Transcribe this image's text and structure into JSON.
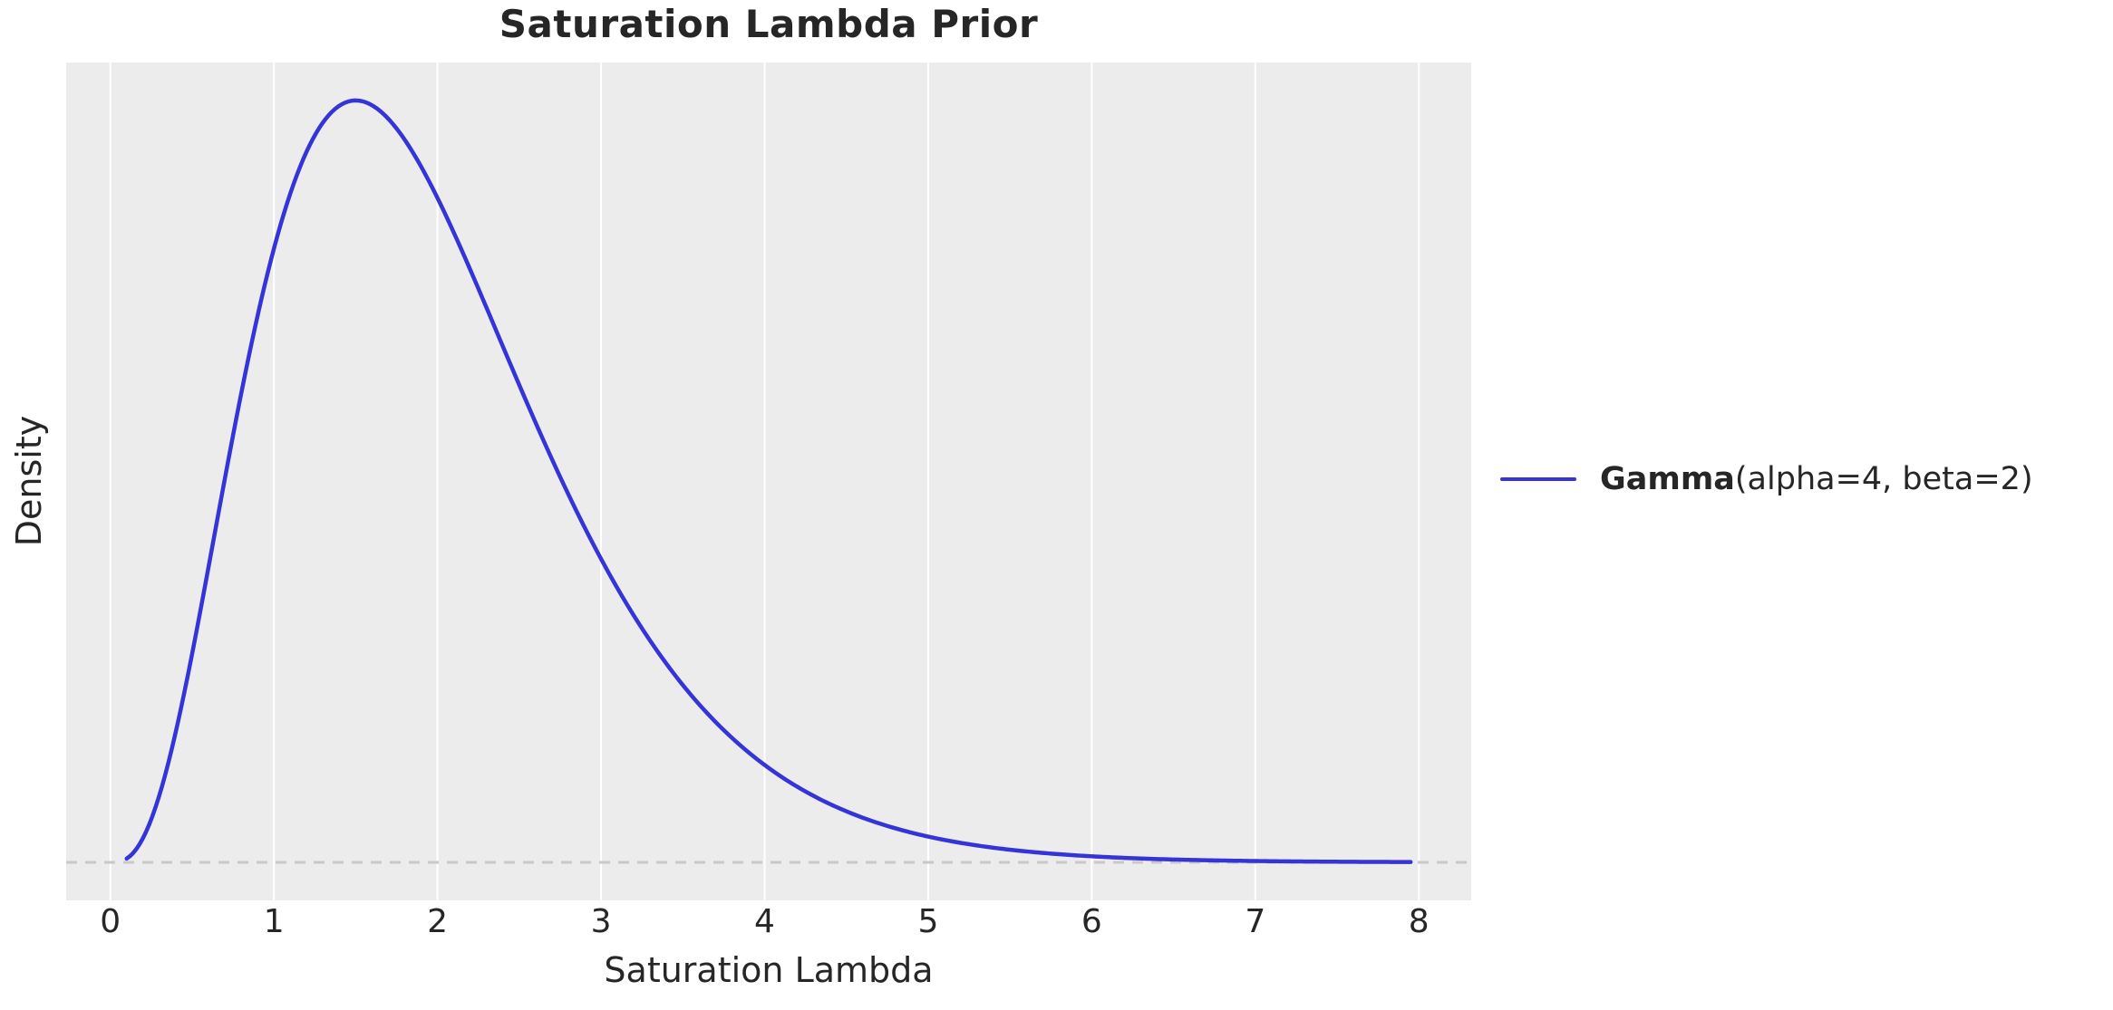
{
  "title": "Saturation Lambda Prior",
  "colors": {
    "figure_bg": "#ffffff",
    "plot_bg": "#ececec",
    "grid": "#ffffff",
    "curve": "#3434d8",
    "zero_line": "#c8c8c8",
    "text": "#262626"
  },
  "legend": {
    "label_bold": "Gamma",
    "label_rest": "(alpha=4, beta=2)"
  },
  "chart_data": {
    "type": "line",
    "title": "Saturation Lambda Prior",
    "xlabel": "Saturation Lambda",
    "ylabel": "Density",
    "x_ticks": [
      0,
      1,
      2,
      3,
      4,
      5,
      6,
      7,
      8
    ],
    "y_ticks": [],
    "xlim": [
      -0.27,
      8.32
    ],
    "ylim": [
      -0.0224,
      0.4704
    ],
    "grid": "vertical-only",
    "grid_color": "#ffffff",
    "legend_position": "right-outside",
    "series": [
      {
        "name": "Gamma(alpha=4, beta=2)",
        "distribution": "gamma",
        "alpha": 4,
        "beta": 2,
        "x_range": [
          0.1,
          7.95
        ],
        "color": "#3434d8",
        "line_width": 4.5,
        "peak": {
          "x": 1.5,
          "y": 0.448
        },
        "points": [
          [
            0.1,
            0.0022
          ],
          [
            0.25,
            0.0253
          ],
          [
            0.5,
            0.1226
          ],
          [
            0.75,
            0.251
          ],
          [
            1.0,
            0.3609
          ],
          [
            1.25,
            0.4275
          ],
          [
            1.5,
            0.4481
          ],
          [
            1.75,
            0.4315
          ],
          [
            2.0,
            0.3907
          ],
          [
            2.5,
            0.2807
          ],
          [
            3.0,
            0.1785
          ],
          [
            3.5,
            0.1043
          ],
          [
            4.0,
            0.0573
          ],
          [
            4.5,
            0.03
          ],
          [
            5.0,
            0.0151
          ],
          [
            5.5,
            0.0074
          ],
          [
            6.0,
            0.0035
          ],
          [
            6.5,
            0.0017
          ],
          [
            7.0,
            0.0008
          ],
          [
            7.5,
            0.0003
          ],
          [
            7.95,
            0.0002
          ]
        ]
      }
    ],
    "reference_lines": [
      {
        "type": "horizontal",
        "y": 0,
        "style": "dashed",
        "color": "#c8c8c8"
      }
    ]
  }
}
